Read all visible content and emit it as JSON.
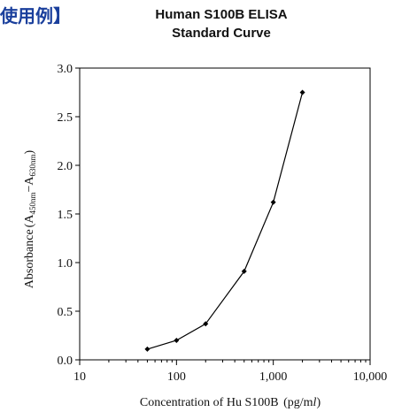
{
  "header": {
    "section_label": "使用例】"
  },
  "chart_data": {
    "type": "line",
    "title": "Human S100B ELISA",
    "subtitle": "Standard Curve",
    "xlabel": "Concentration of Hu S100B (pg/ml)",
    "xlabel_parts": {
      "main": "Concentration of Hu S100B",
      "unit_open": "(pg/m",
      "unit_italic": "l",
      "unit_close": ")"
    },
    "ylabel": "Absorbance (A450nm−A630nm)",
    "ylabel_parts": {
      "main": "Absorbance",
      "open": "(A",
      "sub1": "450nm",
      "minus": "−A",
      "sub2": "630nm",
      "close": ")"
    },
    "x_scale": "log",
    "xlim": [
      10,
      10000
    ],
    "ylim": [
      0,
      3.0
    ],
    "x_ticks": [
      10,
      100,
      1000,
      10000
    ],
    "x_tick_labels": [
      "10",
      "100",
      "1,000",
      "10,000"
    ],
    "y_ticks": [
      0,
      0.5,
      1.0,
      1.5,
      2.0,
      2.5,
      3.0
    ],
    "y_tick_labels": [
      "0.0",
      "0.5",
      "1.0",
      "1.5",
      "2.0",
      "2.5",
      "3.0"
    ],
    "grid": false,
    "legend": "none",
    "series": [
      {
        "x": [
          50,
          100,
          200,
          500,
          1000,
          2000
        ],
        "y": [
          0.11,
          0.2,
          0.37,
          0.91,
          1.62,
          2.75
        ],
        "marker": "diamond",
        "color": "#000000"
      }
    ]
  }
}
